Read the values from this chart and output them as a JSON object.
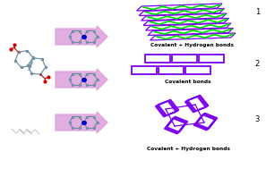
{
  "bg_color": "#ffffff",
  "purple": "#7B00EE",
  "pink_arrow": "#DDA0DD",
  "green": "#00DD00",
  "gray_mol": "#7090A0",
  "blue_n": "#0000CC",
  "label1": "Covalent + Hydrogen bonds",
  "label2": "Covalent bonds",
  "label3": "Covalent + Hydrogen bonds",
  "num1": "1",
  "num2": "2",
  "num3": "3",
  "figsize": [
    2.97,
    1.89
  ],
  "dpi": 100
}
